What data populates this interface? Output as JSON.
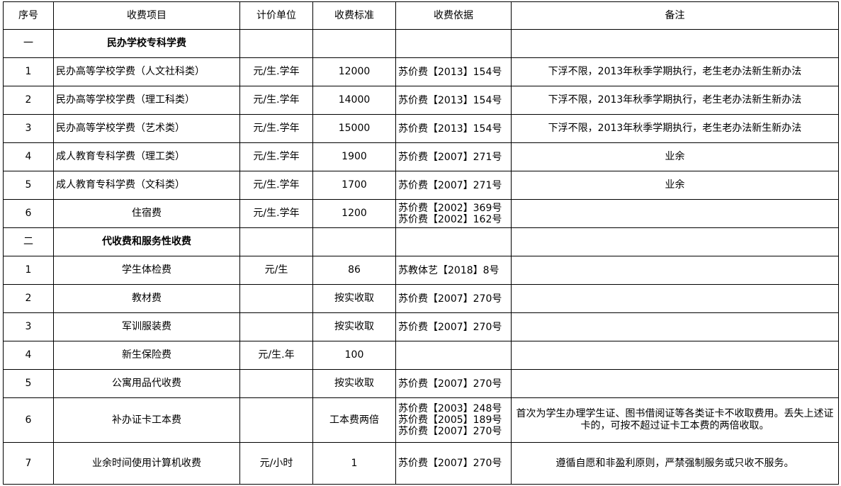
{
  "headers": [
    "序号",
    "收费项目",
    "计价单位",
    "收费标准",
    "收费依据",
    "备注"
  ],
  "rows": [
    {
      "no": "一",
      "item": "民办学校专科学费",
      "unit": "",
      "standard": "",
      "basis": "",
      "note": "",
      "section": true
    },
    {
      "no": "1",
      "item": "民办高等学校学费（人文社科类）",
      "unit": "元/生.学年",
      "standard": "12000",
      "basis": "苏价费【2013】154号",
      "note": "下浮不限，2013年秋季学期执行，老生老办法新生新办法",
      "left": true
    },
    {
      "no": "2",
      "item": "民办高等学校学费（理工科类）",
      "unit": "元/生.学年",
      "standard": "14000",
      "basis": "苏价费【2013】154号",
      "note": "下浮不限，2013年秋季学期执行，老生老办法新生新办法",
      "left": true
    },
    {
      "no": "3",
      "item": "民办高等学校学费（艺术类）",
      "unit": "元/生.学年",
      "standard": "15000",
      "basis": "苏价费【2013】154号",
      "note": "下浮不限，2013年秋季学期执行，老生老办法新生新办法",
      "left": true
    },
    {
      "no": "4",
      "item": "成人教育专科学费（理工类）",
      "unit": "元/生.学年",
      "standard": "1900",
      "basis": "苏价费【2007】271号",
      "note": "业余",
      "left": true
    },
    {
      "no": "5",
      "item": "成人教育专科学费（文科类）",
      "unit": "元/生.学年",
      "standard": "1700",
      "basis": "苏价费【2007】271号",
      "note": "业余",
      "left": true
    },
    {
      "no": "6",
      "item": "住宿费",
      "unit": "元/生.学年",
      "standard": "1200",
      "basis": "苏价费【2002】369号\n苏价费【2002】162号",
      "note": ""
    },
    {
      "no": "二",
      "item": "代收费和服务性收费",
      "unit": "",
      "standard": "",
      "basis": "",
      "note": "",
      "section": true
    },
    {
      "no": "1",
      "item": "学生体检费",
      "unit": "元/生",
      "standard": "86",
      "basis": "苏教体艺【2018】8号",
      "note": ""
    },
    {
      "no": "2",
      "item": "教材费",
      "unit": "",
      "standard": "按实收取",
      "basis": "苏价费【2007】270号",
      "note": ""
    },
    {
      "no": "3",
      "item": "军训服装费",
      "unit": "",
      "standard": "按实收取",
      "basis": "苏价费【2007】270号",
      "note": ""
    },
    {
      "no": "4",
      "item": "新生保险费",
      "unit": "元/生.年",
      "standard": "100",
      "basis": "",
      "note": ""
    },
    {
      "no": "5",
      "item": "公寓用品代收费",
      "unit": "",
      "standard": "按实收取",
      "basis": "苏价费【2007】270号",
      "note": ""
    },
    {
      "no": "6",
      "item": "补办证卡工本费",
      "unit": "",
      "standard": "工本费两倍",
      "basis": "苏价费【2003】248号\n苏价费【2005】189号\n苏价费【2007】270号",
      "note": "首次为学生办理学生证、图书借阅证等各类证卡不收取费用。丢失上述证卡的，可按不超过证卡工本费的两倍收取。",
      "h": "tall"
    },
    {
      "no": "7",
      "item": "业余时间使用计算机收费",
      "unit": "元/小时",
      "standard": "1",
      "basis": "苏价费【2007】270号",
      "note": "遵循自愿和非盈利原则，严禁强制服务或只收不服务。",
      "h": "last"
    }
  ]
}
